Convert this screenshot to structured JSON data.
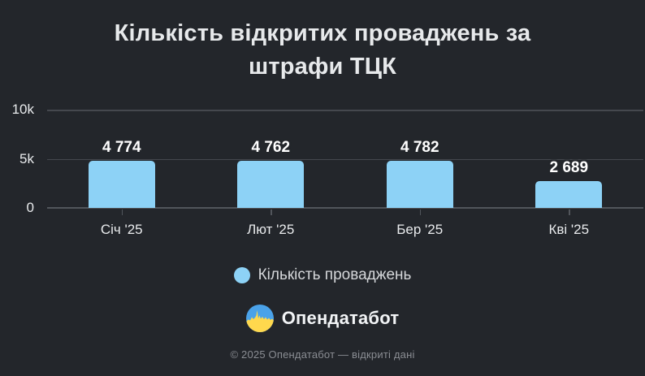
{
  "title": {
    "full": "Кількість відкритих проваджень за штрафи ТЦК",
    "line1": "Кількість відкритих проваджень за",
    "line2": "штрафи ТЦК"
  },
  "chart_data": {
    "type": "bar",
    "title": "Кількість відкритих проваджень за штрафи ТЦК",
    "categories": [
      "Січ '25",
      "Лют '25",
      "Бер '25",
      "Кві '25"
    ],
    "series": [
      {
        "name": "Кількість проваджень",
        "values": [
          4774,
          4762,
          4782,
          2689
        ],
        "value_labels": [
          "4 774",
          "4 762",
          "4 782",
          "2 689"
        ],
        "color": "#8DD2F6"
      }
    ],
    "xlabel": "",
    "ylabel": "",
    "ylim": [
      0,
      10000
    ],
    "y_ticks": [
      {
        "value": 10000,
        "label": "10k"
      },
      {
        "value": 5000,
        "label": "5k"
      },
      {
        "value": 0,
        "label": "0"
      }
    ],
    "grid": true,
    "legend_position": "bottom"
  },
  "legend": {
    "label": "Кількість проваджень",
    "marker_color": "#8DD2F6"
  },
  "brand": {
    "name": "Опендатабот"
  },
  "footer": {
    "text": "© 2025 Опендатабот — відкриті дані"
  },
  "colors": {
    "background": "#23262B",
    "bar": "#8DD2F6",
    "gridline": "#45484E",
    "axis_line": "#51555B",
    "title_text": "#E7E9EB",
    "axis_text": "#E9EBED",
    "value_text": "#FFFFFF",
    "legend_text": "#D5D7DA",
    "footer_text": "#8A8D93",
    "logo_blue": "#4AA2E9",
    "logo_yellow": "#FFD84D"
  }
}
